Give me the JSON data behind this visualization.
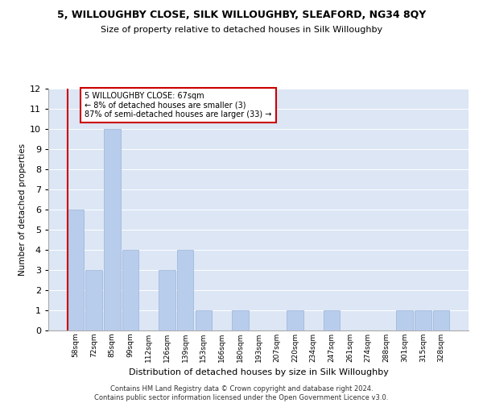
{
  "title": "5, WILLOUGHBY CLOSE, SILK WILLOUGHBY, SLEAFORD, NG34 8QY",
  "subtitle": "Size of property relative to detached houses in Silk Willoughby",
  "xlabel": "Distribution of detached houses by size in Silk Willoughby",
  "ylabel": "Number of detached properties",
  "categories": [
    "58sqm",
    "72sqm",
    "85sqm",
    "99sqm",
    "112sqm",
    "126sqm",
    "139sqm",
    "153sqm",
    "166sqm",
    "180sqm",
    "193sqm",
    "207sqm",
    "220sqm",
    "234sqm",
    "247sqm",
    "261sqm",
    "274sqm",
    "288sqm",
    "301sqm",
    "315sqm",
    "328sqm"
  ],
  "values": [
    6,
    3,
    10,
    4,
    0,
    3,
    4,
    1,
    0,
    1,
    0,
    0,
    1,
    0,
    1,
    0,
    0,
    0,
    1,
    1,
    1
  ],
  "bar_color": "#b8ccec",
  "bar_edge_color": "#9ab4d8",
  "annotation_box_color": "#cc0000",
  "annotation_line1": "5 WILLOUGHBY CLOSE: 67sqm",
  "annotation_line2": "← 8% of detached houses are smaller (3)",
  "annotation_line3": "87% of semi-detached houses are larger (33) →",
  "ylim": [
    0,
    12
  ],
  "yticks": [
    0,
    1,
    2,
    3,
    4,
    5,
    6,
    7,
    8,
    9,
    10,
    11,
    12
  ],
  "background_color": "#dce6f5",
  "footer_line1": "Contains HM Land Registry data © Crown copyright and database right 2024.",
  "footer_line2": "Contains public sector information licensed under the Open Government Licence v3.0."
}
